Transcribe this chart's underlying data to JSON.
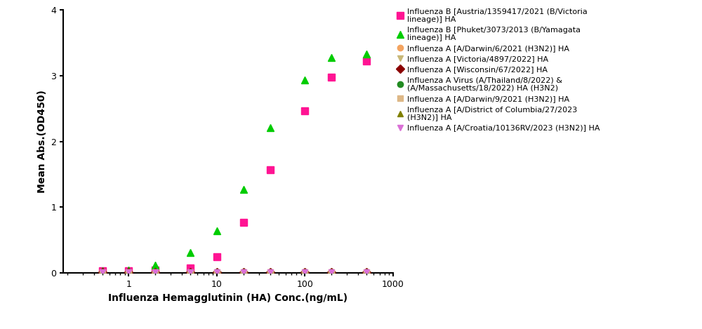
{
  "xlabel": "Influenza Hemagglutinin (HA) Conc.(ng/mL)",
  "ylabel": "Mean Abs.(OD450)",
  "xlim_low": 0.18,
  "xlim_high": 1000,
  "ylim": [
    0,
    4
  ],
  "yticks": [
    0,
    1,
    2,
    3,
    4
  ],
  "series": [
    {
      "label": "Influenza B [Austria/1359417/2021 (B/Victoria\nlineage)] HA",
      "color": "#FF1493",
      "marker": "s",
      "filled": true,
      "x": [
        0.5,
        1.0,
        2.0,
        5.0,
        10.0,
        20.0,
        40.0,
        100.0,
        200.0,
        500.0
      ],
      "y": [
        0.03,
        0.04,
        0.05,
        0.08,
        0.25,
        0.77,
        1.57,
        2.47,
        2.98,
        3.22
      ],
      "active": true,
      "ec50": 25.0,
      "hill": 1.5,
      "top": 3.28,
      "bottom": 0.03
    },
    {
      "label": "Influenza B [Phuket/3073/2013 (B/Yamagata\nlineage)] HA",
      "color": "#00CC00",
      "marker": "^",
      "filled": true,
      "x": [
        0.5,
        1.0,
        2.0,
        5.0,
        10.0,
        20.0,
        40.0,
        100.0,
        200.0,
        500.0
      ],
      "y": [
        0.04,
        0.05,
        0.12,
        0.31,
        0.64,
        1.27,
        2.21,
        2.93,
        3.28,
        3.33
      ],
      "active": true,
      "ec50": 12.0,
      "hill": 1.5,
      "top": 3.35,
      "bottom": 0.03
    },
    {
      "label": "Influenza A [A/Darwin/6/2021 (H3N2)] HA",
      "color": "#F4A460",
      "marker": "o",
      "filled": true,
      "x": [
        0.5,
        1.0,
        2.0,
        5.0,
        10.0,
        20.0,
        40.0,
        100.0,
        200.0,
        500.0
      ],
      "y": [
        0.01,
        0.01,
        0.01,
        0.01,
        0.01,
        0.01,
        0.01,
        0.01,
        0.01,
        0.01
      ],
      "active": false
    },
    {
      "label": "Influenza A [Victoria/4897/2022] HA",
      "color": "#C8B878",
      "marker": "v",
      "filled": true,
      "x": [
        0.5,
        1.0,
        2.0,
        5.0,
        10.0,
        20.0,
        40.0,
        100.0,
        200.0,
        500.0
      ],
      "y": [
        0.01,
        0.01,
        0.01,
        0.01,
        0.01,
        0.01,
        0.01,
        0.01,
        0.01,
        0.01
      ],
      "active": false
    },
    {
      "label": "Influenza A [Wisconsin/67/2022] HA",
      "color": "#8B0000",
      "marker": "D",
      "filled": true,
      "x": [
        0.5,
        1.0,
        2.0,
        5.0,
        10.0,
        20.0,
        40.0,
        100.0,
        200.0,
        500.0
      ],
      "y": [
        0.01,
        0.01,
        0.01,
        0.01,
        0.01,
        0.01,
        0.01,
        0.01,
        0.01,
        0.01
      ],
      "active": false
    },
    {
      "label": "Influenza A Virus (A/Thailand/8/2022) &\n(A/Massachusetts/18/2022) HA (H3N2)",
      "color": "#228B22",
      "marker": "o",
      "filled": true,
      "x": [
        0.5,
        1.0,
        2.0,
        5.0,
        10.0,
        20.0,
        40.0,
        100.0,
        200.0,
        500.0
      ],
      "y": [
        0.01,
        0.01,
        0.01,
        0.01,
        0.01,
        0.01,
        0.01,
        0.01,
        0.01,
        0.01
      ],
      "active": false
    },
    {
      "label": "Influenza A [A/Darwin/9/2021 (H3N2)] HA",
      "color": "#DEB887",
      "marker": "s",
      "filled": true,
      "x": [
        0.5,
        1.0,
        2.0,
        5.0,
        10.0,
        20.0,
        40.0,
        100.0,
        200.0,
        500.0
      ],
      "y": [
        0.01,
        0.01,
        0.01,
        0.01,
        0.01,
        0.01,
        0.01,
        0.01,
        0.01,
        0.01
      ],
      "active": false
    },
    {
      "label": "Influenza A [A/District of Columbia/27/2023\n(H3N2)] HA",
      "color": "#808000",
      "marker": "^",
      "filled": true,
      "x": [
        0.5,
        1.0,
        2.0,
        5.0,
        10.0,
        20.0,
        40.0,
        100.0,
        200.0,
        500.0
      ],
      "y": [
        0.01,
        0.01,
        0.01,
        0.01,
        0.01,
        0.01,
        0.01,
        0.01,
        0.01,
        0.01
      ],
      "active": false
    },
    {
      "label": "Influenza A [A/Croatia/10136RV/2023 (H3N2)] HA",
      "color": "#DA70D6",
      "marker": "v",
      "filled": true,
      "x": [
        0.5,
        1.0,
        2.0,
        5.0,
        10.0,
        20.0,
        40.0,
        100.0,
        200.0,
        500.0
      ],
      "y": [
        0.01,
        0.01,
        0.01,
        0.01,
        0.01,
        0.01,
        0.01,
        0.01,
        0.01,
        0.01
      ],
      "active": false
    }
  ]
}
